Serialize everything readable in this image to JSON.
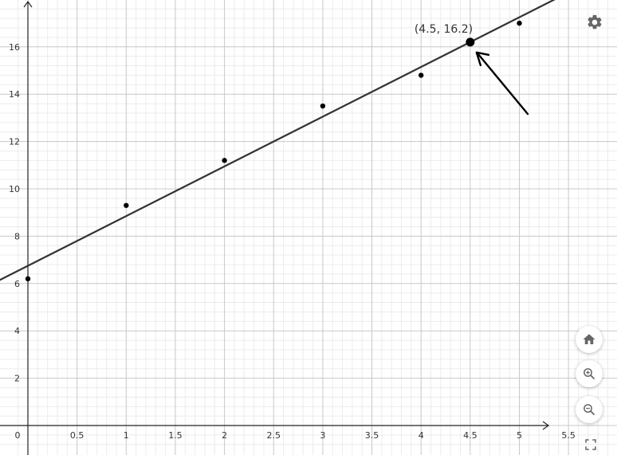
{
  "colors": {
    "grid_minor": "#ececec",
    "grid_major": "#c8c8c8",
    "axis": "#222222",
    "line": "#333333",
    "point": "#000000",
    "icon": "#666666"
  },
  "chart_data": {
    "type": "scatter",
    "xlim": [
      0,
      5.5
    ],
    "ylim": [
      0,
      16
    ],
    "x_ticks": [
      "0",
      "0.5",
      "1",
      "1.5",
      "2",
      "2.5",
      "3",
      "3.5",
      "4",
      "4.5",
      "5",
      "5.5"
    ],
    "y_ticks": [
      "2",
      "4",
      "6",
      "8",
      "10",
      "12",
      "14",
      "16"
    ],
    "grid": true,
    "points": [
      {
        "x": 0,
        "y": 6.2
      },
      {
        "x": 1,
        "y": 9.3
      },
      {
        "x": 2,
        "y": 11.2
      },
      {
        "x": 3,
        "y": 13.5
      },
      {
        "x": 4,
        "y": 14.8
      },
      {
        "x": 5,
        "y": 17.0
      }
    ],
    "fit_line": {
      "slope": 2.1,
      "intercept": 6.75
    },
    "highlight_point": {
      "x": 4.5,
      "y": 16.2,
      "label": "(4.5, 16.2)"
    },
    "annotation": "arrow-pointing-at-highlight"
  },
  "toolbar": {
    "settings_icon": "gear-icon",
    "home_icon": "home-icon",
    "zoom_in_icon": "zoom-in-icon",
    "zoom_out_icon": "zoom-out-icon",
    "fullscreen_icon": "fullscreen-icon"
  }
}
